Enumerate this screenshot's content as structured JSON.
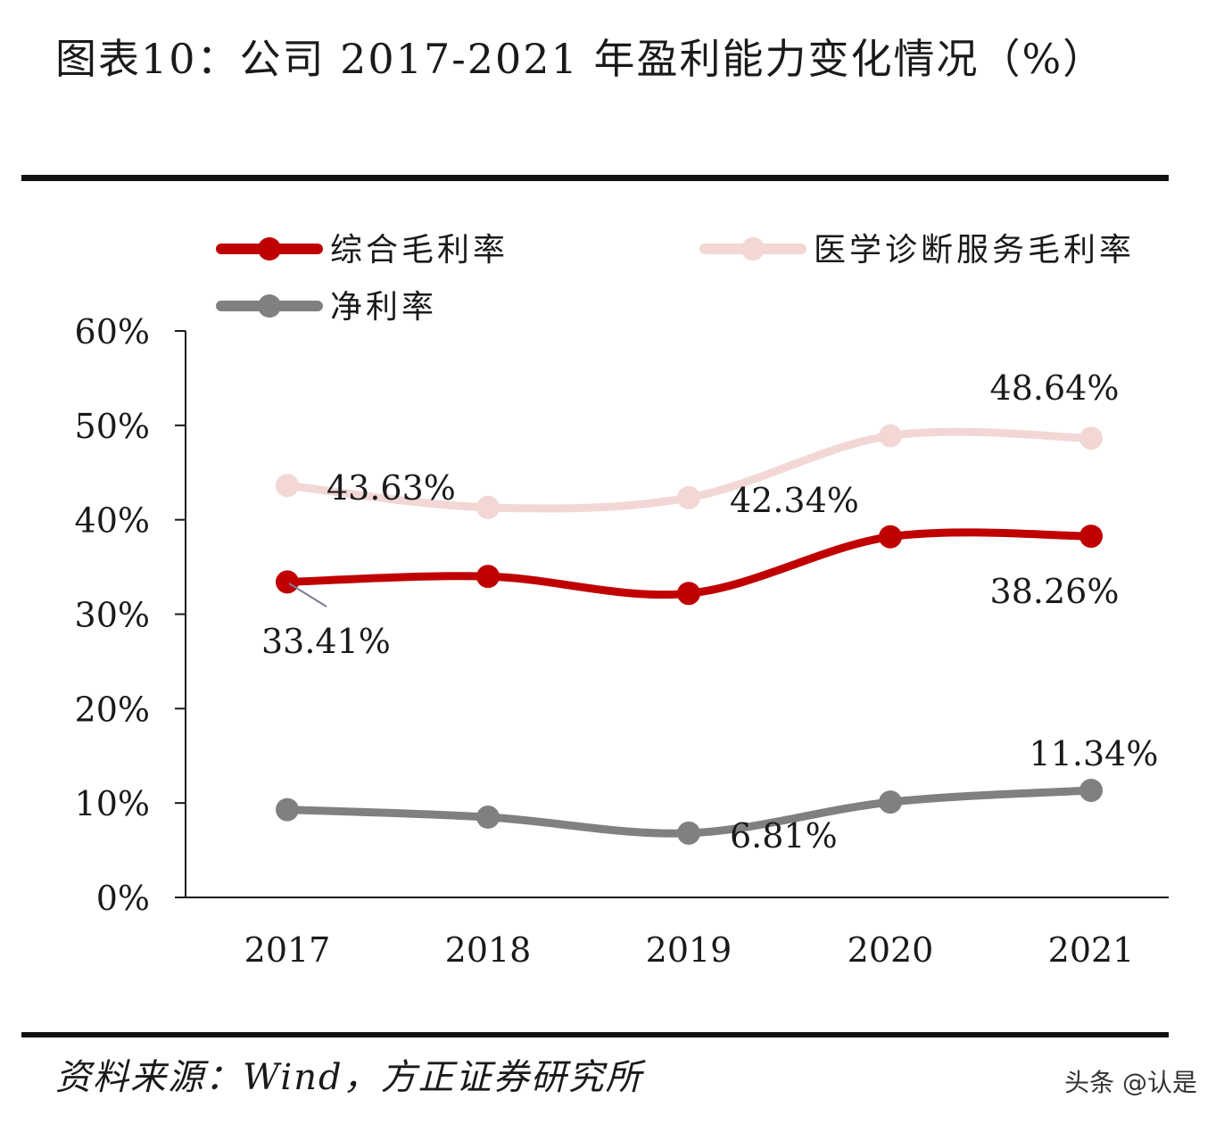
{
  "header": {
    "title": "图表10：公司 2017-2021 年盈利能力变化情况（%）"
  },
  "footer": {
    "source": "资料来源：Wind，方正证券研究所",
    "watermark": "头条 @认是"
  },
  "chart_data": {
    "type": "line",
    "categories": [
      "2017",
      "2018",
      "2019",
      "2020",
      "2021"
    ],
    "ylim": [
      0,
      60
    ],
    "yticks": [
      "0%",
      "10%",
      "20%",
      "30%",
      "40%",
      "50%",
      "60%"
    ],
    "grid": false,
    "legend_position": "top",
    "series": [
      {
        "name": "综合毛利率",
        "color": "#c00000",
        "values": [
          33.41,
          34.0,
          32.2,
          38.2,
          38.26
        ],
        "labels": [
          "33.41%",
          "",
          "",
          "",
          "38.26%"
        ]
      },
      {
        "name": "医学诊断服务毛利率",
        "color": "#f2d7d5",
        "values": [
          43.63,
          41.3,
          42.34,
          48.9,
          48.64
        ],
        "labels": [
          "43.63%",
          "",
          "42.34%",
          "",
          "48.64%"
        ]
      },
      {
        "name": "净利率",
        "color": "#808080",
        "values": [
          9.3,
          8.5,
          6.81,
          10.1,
          11.34
        ],
        "labels": [
          "",
          "",
          "6.81%",
          "",
          "11.34%"
        ]
      }
    ]
  }
}
